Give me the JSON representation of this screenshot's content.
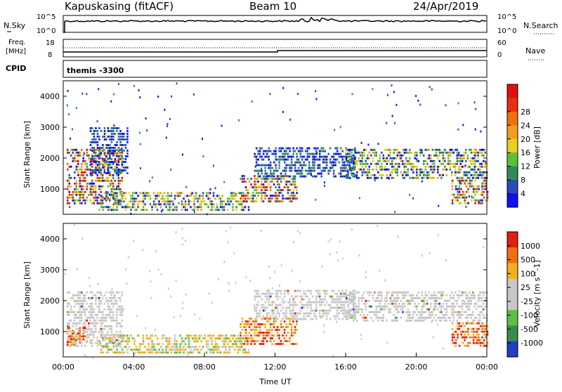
{
  "header": {
    "station": "Kapuskasing (fitACF)",
    "beam": "Beam 10",
    "date": "24/Apr/2019"
  },
  "noise_panel": {
    "left_label": "N.Sky",
    "right_label": "N.Search",
    "left_ticks": [
      "10^5",
      "10^0"
    ],
    "right_ticks": [
      "10^5",
      "10^0"
    ]
  },
  "freq_panel": {
    "left_label_1": "Freq.",
    "left_label_2": "[MHz]",
    "right_label": "Nave",
    "left_ticks": [
      "18",
      "8"
    ],
    "right_ticks": [
      "60",
      "0"
    ]
  },
  "cpid_panel": {
    "label": "CPID",
    "value": "themis -3300"
  },
  "chart_data": [
    {
      "type": "heatmap",
      "title": "",
      "variable": "Power",
      "ylabel": "Slant Range [km]",
      "xlabel": "",
      "xlim": [
        "00:00",
        "24:00"
      ],
      "ylim": [
        180,
        4500
      ],
      "y_ticks": [
        1000,
        2000,
        3000,
        4000
      ],
      "colorbar_label": "Power [dB]",
      "colorbar_ticks": [
        4,
        8,
        12,
        16,
        20,
        24,
        28
      ],
      "colorbar_colors": [
        "#1010f0",
        "#2a4ab8",
        "#2e8b57",
        "#5fbf3a",
        "#e8d020",
        "#f0a020",
        "#f07010",
        "#e83010",
        "#e01010"
      ],
      "regions": [
        {
          "t": [
            0.2,
            3.3
          ],
          "r": [
            550,
            2300
          ],
          "level": "high"
        },
        {
          "t": [
            1.5,
            3.6
          ],
          "r": [
            1500,
            3000
          ],
          "level": "low"
        },
        {
          "t": [
            2.0,
            10.5
          ],
          "r": [
            350,
            900
          ],
          "level": "mixed"
        },
        {
          "t": [
            10.0,
            13.2
          ],
          "r": [
            600,
            1450
          ],
          "level": "high"
        },
        {
          "t": [
            10.8,
            16.5
          ],
          "r": [
            1350,
            2350
          ],
          "level": "low"
        },
        {
          "t": [
            16.0,
            24.0
          ],
          "r": [
            1300,
            2300
          ],
          "level": "mixed"
        },
        {
          "t": [
            22.0,
            24.0
          ],
          "r": [
            500,
            1300
          ],
          "level": "high"
        }
      ]
    },
    {
      "type": "heatmap",
      "title": "",
      "variable": "Velocity",
      "ylabel": "Slant Range [km]",
      "xlabel": "Time UT",
      "xlim": [
        "00:00",
        "24:00"
      ],
      "ylim": [
        180,
        4500
      ],
      "x_ticks": [
        "00:00",
        "04:00",
        "08:00",
        "12:00",
        "16:00",
        "20:00",
        "00:00"
      ],
      "y_ticks": [
        1000,
        2000,
        3000,
        4000
      ],
      "colorbar_label": "Velocity [m s^-1]",
      "colorbar_ticks": [
        1000,
        500,
        100,
        25,
        -25,
        -100,
        -500,
        -1000
      ],
      "colorbar_colors": [
        "#2040c0",
        "#3a8a4a",
        "#5ec040",
        "#c8c8c8",
        "#c8c8c8",
        "#f0b020",
        "#f07010",
        "#e02010"
      ],
      "regions": [
        {
          "t": [
            0.2,
            3.3
          ],
          "r": [
            550,
            2300
          ],
          "level": "ground"
        },
        {
          "t": [
            0.2,
            1.3
          ],
          "r": [
            550,
            1150
          ],
          "level": "neg"
        },
        {
          "t": [
            2.0,
            10.5
          ],
          "r": [
            350,
            900
          ],
          "level": "mixed"
        },
        {
          "t": [
            10.0,
            13.2
          ],
          "r": [
            600,
            1450
          ],
          "level": "neg"
        },
        {
          "t": [
            10.8,
            16.5
          ],
          "r": [
            1350,
            2350
          ],
          "level": "ground"
        },
        {
          "t": [
            16.0,
            24.0
          ],
          "r": [
            1300,
            2300
          ],
          "level": "ground"
        },
        {
          "t": [
            22.0,
            24.0
          ],
          "r": [
            500,
            1300
          ],
          "level": "neg"
        }
      ]
    }
  ]
}
